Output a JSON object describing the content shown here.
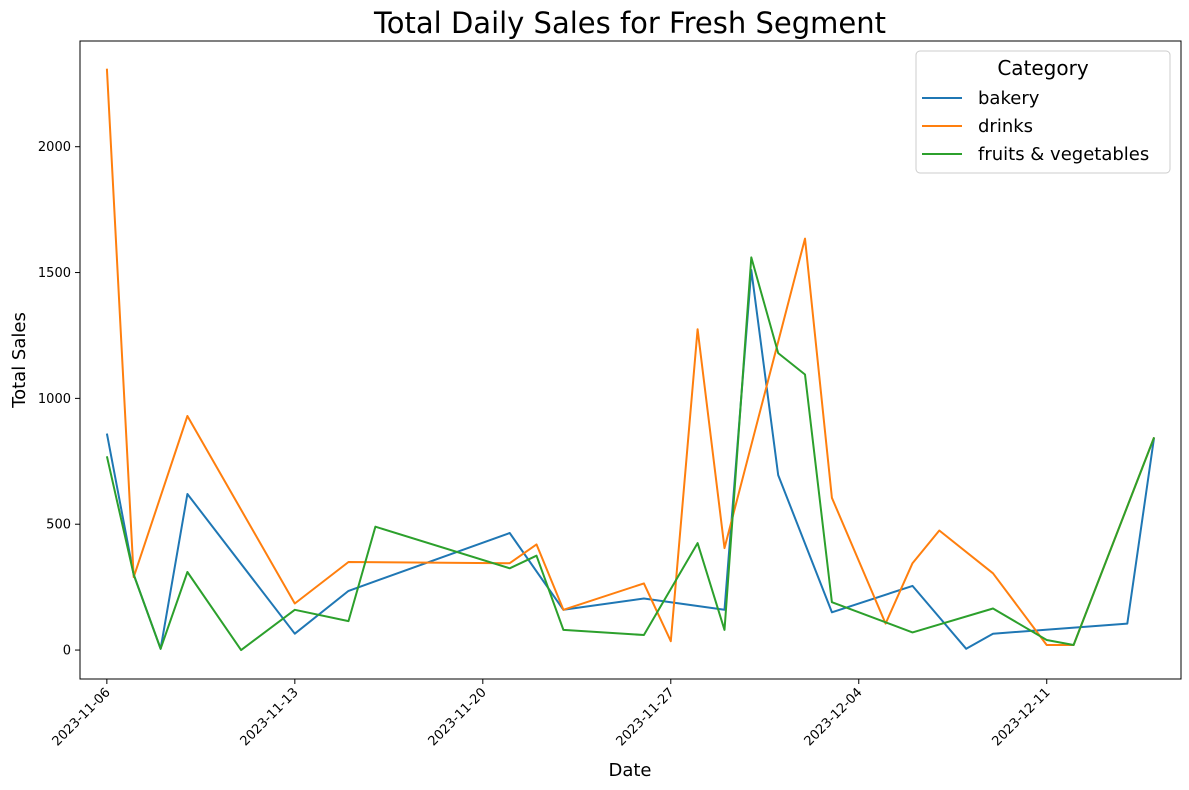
{
  "chart_data": {
    "type": "line",
    "title": "Total Daily Sales for Fresh Segment",
    "xlabel": "Date",
    "ylabel": "Total Sales",
    "xlim": [
      "2023-11-05",
      "2023-12-16"
    ],
    "ylim": [
      -115,
      2420
    ],
    "x_ticks": [
      "2023-11-06",
      "2023-11-13",
      "2023-11-20",
      "2023-11-27",
      "2023-12-04",
      "2023-12-11"
    ],
    "y_ticks": [
      0,
      500,
      1000,
      1500,
      2000
    ],
    "grid": false,
    "legend": {
      "title": "Category",
      "placement": "top-right"
    },
    "series": [
      {
        "name": "bakery",
        "color": "#1f77b4",
        "points": [
          [
            "2023-11-06",
            860
          ],
          [
            "2023-11-07",
            300
          ],
          [
            "2023-11-08",
            5
          ],
          [
            "2023-11-09",
            620
          ],
          [
            "2023-11-13",
            65
          ],
          [
            "2023-11-15",
            235
          ],
          [
            "2023-11-21",
            465
          ],
          [
            "2023-11-23",
            160
          ],
          [
            "2023-11-26",
            205
          ],
          [
            "2023-11-29",
            160
          ],
          [
            "2023-11-30",
            1510
          ],
          [
            "2023-12-01",
            695
          ],
          [
            "2023-12-03",
            150
          ],
          [
            "2023-12-06",
            255
          ],
          [
            "2023-12-08",
            5
          ],
          [
            "2023-12-09",
            65
          ],
          [
            "2023-12-14",
            105
          ],
          [
            "2023-12-15",
            845
          ]
        ]
      },
      {
        "name": "drinks",
        "color": "#ff7f0e",
        "points": [
          [
            "2023-11-06",
            2310
          ],
          [
            "2023-11-07",
            290
          ],
          [
            "2023-11-09",
            930
          ],
          [
            "2023-11-13",
            185
          ],
          [
            "2023-11-15",
            350
          ],
          [
            "2023-11-21",
            345
          ],
          [
            "2023-11-22",
            420
          ],
          [
            "2023-11-23",
            160
          ],
          [
            "2023-11-26",
            265
          ],
          [
            "2023-11-27",
            35
          ],
          [
            "2023-11-28",
            1275
          ],
          [
            "2023-11-29",
            405
          ],
          [
            "2023-12-02",
            1635
          ],
          [
            "2023-12-03",
            605
          ],
          [
            "2023-12-05",
            105
          ],
          [
            "2023-12-06",
            345
          ],
          [
            "2023-12-07",
            475
          ],
          [
            "2023-12-09",
            305
          ],
          [
            "2023-12-11",
            20
          ],
          [
            "2023-12-12",
            20
          ],
          [
            "2023-12-15",
            845
          ]
        ]
      },
      {
        "name": "fruits & vegetables",
        "color": "#2ca02c",
        "points": [
          [
            "2023-11-06",
            770
          ],
          [
            "2023-11-07",
            300
          ],
          [
            "2023-11-08",
            5
          ],
          [
            "2023-11-09",
            310
          ],
          [
            "2023-11-11",
            0
          ],
          [
            "2023-11-13",
            160
          ],
          [
            "2023-11-15",
            115
          ],
          [
            "2023-11-16",
            490
          ],
          [
            "2023-11-21",
            325
          ],
          [
            "2023-11-22",
            375
          ],
          [
            "2023-11-23",
            80
          ],
          [
            "2023-11-26",
            60
          ],
          [
            "2023-11-28",
            425
          ],
          [
            "2023-11-29",
            80
          ],
          [
            "2023-11-30",
            1560
          ],
          [
            "2023-12-01",
            1180
          ],
          [
            "2023-12-02",
            1095
          ],
          [
            "2023-12-03",
            190
          ],
          [
            "2023-12-06",
            70
          ],
          [
            "2023-12-09",
            165
          ],
          [
            "2023-12-11",
            40
          ],
          [
            "2023-12-12",
            20
          ],
          [
            "2023-12-15",
            845
          ]
        ]
      }
    ]
  }
}
